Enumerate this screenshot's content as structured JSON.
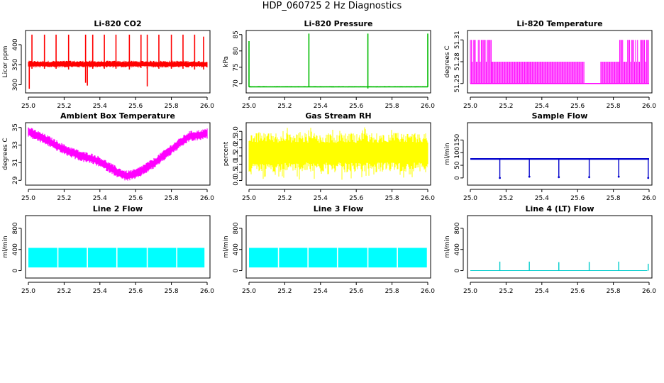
{
  "page": {
    "title": "HDP_060725  2 Hz Diagnostics"
  },
  "chart_data": [
    {
      "type": "line",
      "title": "Li-820 CO2",
      "xlabel": "",
      "ylabel": "Licor ppm",
      "color": "#ff0000",
      "xlim": [
        25.0,
        26.0
      ],
      "ylim": [
        285,
        430
      ],
      "xticks": [
        25.0,
        25.2,
        25.4,
        25.6,
        25.8,
        26.0
      ],
      "xtick_labels": [
        "25.0",
        "25.2",
        "25.4",
        "25.6",
        "25.8",
        "26.0"
      ],
      "yticks": [
        300,
        350,
        400
      ],
      "ytick_labels": [
        "300",
        "350",
        "400"
      ],
      "series": [
        {
          "baseline": 352,
          "noise": 4,
          "band_low": 345,
          "band_high": 358,
          "spikes": [
            {
              "x": 25.02,
              "y": 425,
              "low": 340
            },
            {
              "x": 25.09,
              "y": 425,
              "low": 340
            },
            {
              "x": 25.155,
              "y": 425,
              "low": 340
            },
            {
              "x": 25.225,
              "y": 425,
              "low": 338
            },
            {
              "x": 25.32,
              "y": 425,
              "low": 305
            },
            {
              "x": 25.36,
              "y": 425,
              "low": 340
            },
            {
              "x": 25.425,
              "y": 425,
              "low": 340
            },
            {
              "x": 25.49,
              "y": 425,
              "low": 340
            },
            {
              "x": 25.565,
              "y": 425,
              "low": 338
            },
            {
              "x": 25.63,
              "y": 425,
              "low": 342
            },
            {
              "x": 25.665,
              "y": 425,
              "low": 340
            },
            {
              "x": 25.73,
              "y": 425,
              "low": 340
            },
            {
              "x": 25.8,
              "y": 425,
              "low": 340
            },
            {
              "x": 25.865,
              "y": 425,
              "low": 340
            },
            {
              "x": 25.93,
              "y": 425,
              "low": 338
            },
            {
              "x": 25.98,
              "y": 420,
              "low": 338
            }
          ],
          "dips": [
            {
              "x": 25.005,
              "y": 290
            },
            {
              "x": 25.33,
              "y": 298
            },
            {
              "x": 25.665,
              "y": 296
            }
          ]
        }
      ]
    },
    {
      "type": "line",
      "title": "Li-820 Pressure",
      "xlabel": "",
      "ylabel": "kPa",
      "color": "#00bb00",
      "xlim": [
        25.0,
        26.0
      ],
      "ylim": [
        67.8,
        85.6
      ],
      "xticks": [
        25.0,
        25.2,
        25.4,
        25.6,
        25.8,
        26.0
      ],
      "xtick_labels": [
        "25.0",
        "25.2",
        "25.4",
        "25.6",
        "25.8",
        "26.0"
      ],
      "yticks": [
        70,
        75,
        80,
        85
      ],
      "ytick_labels": [
        "70",
        "75",
        "80",
        "85"
      ],
      "series": [
        {
          "baseline": 69.0,
          "noise": 0.08,
          "band_low": 68.9,
          "band_high": 69.2,
          "spikes": [
            {
              "x": 25.0,
              "y": 83.0,
              "low": 69
            },
            {
              "x": 25.335,
              "y": 85.3,
              "low": 69
            },
            {
              "x": 25.665,
              "y": 85.3,
              "low": 68.5
            },
            {
              "x": 26.0,
              "y": 85.3,
              "low": 69
            }
          ],
          "dips": []
        }
      ]
    },
    {
      "type": "line",
      "title": "Li-820 Temperature",
      "xlabel": "",
      "ylabel": "degrees C",
      "color": "#ff00ff",
      "xlim": [
        25.0,
        26.0
      ],
      "ylim": [
        51.24,
        51.32
      ],
      "xticks": [
        25.0,
        25.2,
        25.4,
        25.6,
        25.8,
        26.0
      ],
      "xtick_labels": [
        "25.0",
        "25.2",
        "25.4",
        "25.6",
        "25.8",
        "26.0"
      ],
      "yticks": [
        51.25,
        51.28,
        51.31
      ],
      "ytick_labels": [
        "51.25",
        "51.28",
        "51.31"
      ],
      "series": [
        {
          "segments": [
            {
              "x0": 25.0,
              "x1": 25.12,
              "low": 51.25,
              "high": 51.31
            },
            {
              "x0": 25.12,
              "x1": 25.33,
              "low": 51.25,
              "high": 51.28
            },
            {
              "x0": 25.33,
              "x1": 25.64,
              "low": 51.25,
              "high": 51.28
            },
            {
              "x0": 25.64,
              "x1": 25.73,
              "low": 51.25,
              "high": 51.25
            },
            {
              "x0": 25.73,
              "x1": 25.83,
              "low": 51.25,
              "high": 51.28
            },
            {
              "x0": 25.83,
              "x1": 26.0,
              "low": 51.25,
              "high": 51.31
            }
          ]
        }
      ]
    },
    {
      "type": "line",
      "title": "Ambient Box Temperature",
      "xlabel": "",
      "ylabel": "degrees C",
      "color": "#ff00ff",
      "xlim": [
        25.0,
        26.0
      ],
      "ylim": [
        28.7,
        35.3
      ],
      "xticks": [
        25.0,
        25.2,
        25.4,
        25.6,
        25.8,
        26.0
      ],
      "xtick_labels": [
        "25.0",
        "25.2",
        "25.4",
        "25.6",
        "25.8",
        "26.0"
      ],
      "yticks": [
        29,
        31,
        33,
        35
      ],
      "ytick_labels": [
        "29",
        "31",
        "33",
        "35"
      ],
      "series": [
        {
          "x": [
            25.0,
            25.1,
            25.2,
            25.3,
            25.35,
            25.4,
            25.5,
            25.55,
            25.6,
            25.7,
            25.8,
            25.9,
            25.95,
            26.0
          ],
          "y": [
            34.5,
            33.6,
            32.5,
            31.7,
            31.5,
            31.1,
            29.9,
            29.5,
            29.7,
            30.9,
            32.5,
            34.0,
            34.1,
            34.3
          ],
          "band": 0.6
        }
      ]
    },
    {
      "type": "line",
      "title": "Gas Stream RH",
      "xlabel": "",
      "ylabel": "percent",
      "color": "#ffff00",
      "xlim": [
        25.0,
        26.0
      ],
      "ylim": [
        -0.15,
        3.4
      ],
      "xticks": [
        25.0,
        25.2,
        25.4,
        25.6,
        25.8,
        26.0
      ],
      "xtick_labels": [
        "25.0",
        "25.2",
        "25.4",
        "25.6",
        "25.8",
        "26.0"
      ],
      "yticks": [
        0.0,
        0.5,
        1.0,
        1.5,
        2.0,
        2.5,
        3.0
      ],
      "ytick_labels": [
        "0.0",
        "0.5",
        "1.0",
        "1.5",
        "2.0",
        "2.5",
        "3.0"
      ],
      "series": [
        {
          "band_low": 0.8,
          "band_high": 2.6,
          "extreme_low": 0.05,
          "extreme_high": 3.25
        }
      ]
    },
    {
      "type": "line",
      "title": "Sample Flow",
      "xlabel": "",
      "ylabel": "ml/min",
      "color": "#0000cc",
      "xlim": [
        25.0,
        26.0
      ],
      "ylim": [
        -20,
        210
      ],
      "xticks": [
        25.0,
        25.2,
        25.4,
        25.6,
        25.8,
        26.0
      ],
      "xtick_labels": [
        "25.0",
        "25.2",
        "25.4",
        "25.6",
        "25.8",
        "26.0"
      ],
      "yticks": [
        0,
        50,
        100,
        150
      ],
      "ytick_labels": [
        "0",
        "50",
        "100",
        "150"
      ],
      "series": [
        {
          "baseline": 75,
          "noise": 2,
          "dips": [
            {
              "x": 25.165,
              "y": 0
            },
            {
              "x": 25.33,
              "y": 5
            },
            {
              "x": 25.495,
              "y": 3
            },
            {
              "x": 25.665,
              "y": 3
            },
            {
              "x": 25.83,
              "y": 5
            },
            {
              "x": 25.995,
              "y": 0
            }
          ]
        }
      ]
    },
    {
      "type": "area",
      "title": "Line 2 Flow",
      "xlabel": "",
      "ylabel": "ml/min",
      "color": "#00ffff",
      "xlim": [
        25.0,
        26.0
      ],
      "ylim": [
        -100,
        1000
      ],
      "xticks": [
        25.0,
        25.2,
        25.4,
        25.6,
        25.8,
        26.0
      ],
      "xtick_labels": [
        "25.0",
        "25.2",
        "25.4",
        "25.6",
        "25.8",
        "26.0"
      ],
      "yticks": [
        0,
        400,
        800
      ],
      "ytick_labels": [
        "0",
        "400",
        "800"
      ],
      "series": [
        {
          "band_low": 60,
          "band_high": 430,
          "x_start": 25.0,
          "x_end": 25.985,
          "gaps": [
            25.165,
            25.33,
            25.495,
            25.665,
            25.83
          ]
        }
      ]
    },
    {
      "type": "area",
      "title": "Line 3 Flow",
      "xlabel": "",
      "ylabel": "ml/min",
      "color": "#00ffff",
      "xlim": [
        25.0,
        26.0
      ],
      "ylim": [
        -100,
        1000
      ],
      "xticks": [
        25.0,
        25.2,
        25.4,
        25.6,
        25.8,
        26.0
      ],
      "xtick_labels": [
        "25.0",
        "25.2",
        "25.4",
        "25.6",
        "25.8",
        "26.0"
      ],
      "yticks": [
        0,
        400,
        800
      ],
      "ytick_labels": [
        "0",
        "400",
        "800"
      ],
      "series": [
        {
          "band_low": 60,
          "band_high": 430,
          "x_start": 25.0,
          "x_end": 25.995,
          "gaps": [
            25.165,
            25.33,
            25.495,
            25.665,
            25.83
          ]
        }
      ]
    },
    {
      "type": "line",
      "title": "Line 4 (LT) Flow",
      "xlabel": "",
      "ylabel": "ml/min",
      "color": "#00cccc",
      "xlim": [
        25.0,
        26.0
      ],
      "ylim": [
        -100,
        1000
      ],
      "xticks": [
        25.0,
        25.2,
        25.4,
        25.6,
        25.8,
        26.0
      ],
      "xtick_labels": [
        "25.0",
        "25.2",
        "25.4",
        "25.6",
        "25.8",
        "26.0"
      ],
      "yticks": [
        0,
        400,
        800
      ],
      "ytick_labels": [
        "0",
        "400",
        "800"
      ],
      "series": [
        {
          "baseline": 0,
          "x_end": 25.99,
          "spikes": [
            {
              "x": 25.165,
              "y": 170
            },
            {
              "x": 25.33,
              "y": 170
            },
            {
              "x": 25.495,
              "y": 160
            },
            {
              "x": 25.665,
              "y": 165
            },
            {
              "x": 25.83,
              "y": 170
            },
            {
              "x": 25.995,
              "y": 130
            }
          ]
        }
      ]
    }
  ]
}
